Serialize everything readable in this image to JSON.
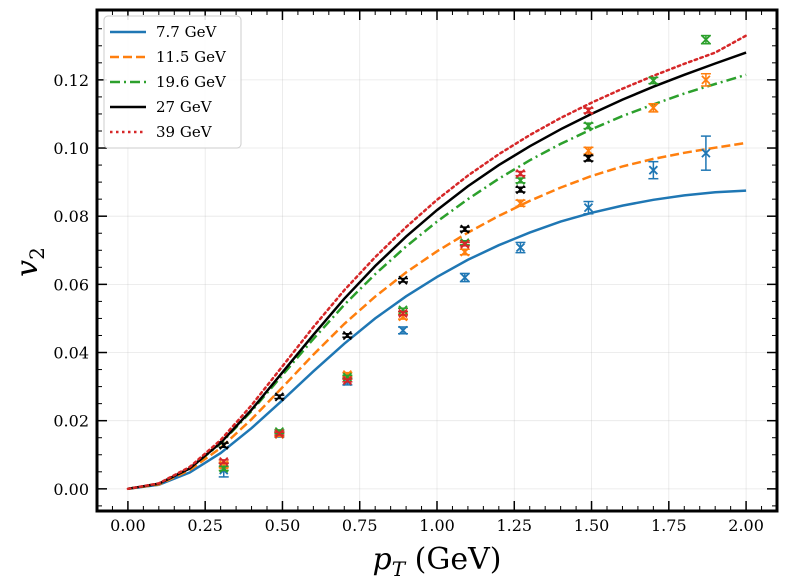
{
  "chart_data": {
    "type": "line",
    "title": "",
    "xlabel": "p",
    "xlabel_sub": "T",
    "xlabel_unit": " (GeV)",
    "ylabel": "v",
    "ylabel_sub": "2",
    "xlim": [
      -0.1,
      2.1
    ],
    "ylim": [
      -0.0065,
      0.1405
    ],
    "xticks": [
      0.0,
      0.25,
      0.5,
      0.75,
      1.0,
      1.25,
      1.5,
      1.75,
      2.0
    ],
    "xtick_labels": [
      "0.00",
      "0.25",
      "0.50",
      "0.75",
      "1.00",
      "1.25",
      "1.50",
      "1.75",
      "2.00"
    ],
    "yticks": [
      0.0,
      0.02,
      0.04,
      0.06,
      0.08,
      0.1,
      0.12
    ],
    "ytick_labels": [
      "0.00",
      "0.02",
      "0.04",
      "0.06",
      "0.08",
      "0.10",
      "0.12"
    ],
    "grid": true,
    "legend_position": "top-left",
    "curves": [
      {
        "name": "7.7 GeV",
        "color": "#1f77b4",
        "dash": "solid",
        "x": [
          0,
          0.1,
          0.2,
          0.3,
          0.4,
          0.5,
          0.6,
          0.7,
          0.8,
          0.9,
          1.0,
          1.1,
          1.2,
          1.3,
          1.4,
          1.5,
          1.6,
          1.7,
          1.8,
          1.9,
          2.0
        ],
        "y": [
          0,
          0.0012,
          0.0048,
          0.0105,
          0.0178,
          0.026,
          0.0345,
          0.0426,
          0.05,
          0.0565,
          0.0622,
          0.0672,
          0.0715,
          0.0752,
          0.0784,
          0.081,
          0.0831,
          0.0848,
          0.0861,
          0.087,
          0.0875
        ]
      },
      {
        "name": "11.5 GeV",
        "color": "#ff7f0e",
        "dash": "dashed",
        "x": [
          0,
          0.1,
          0.2,
          0.3,
          0.4,
          0.5,
          0.6,
          0.7,
          0.8,
          0.9,
          1.0,
          1.1,
          1.2,
          1.3,
          1.4,
          1.5,
          1.6,
          1.7,
          1.8,
          1.9,
          2.0
        ],
        "y": [
          0,
          0.0013,
          0.0055,
          0.012,
          0.0204,
          0.0298,
          0.0394,
          0.0484,
          0.0564,
          0.0635,
          0.0697,
          0.0752,
          0.0801,
          0.0845,
          0.0884,
          0.0918,
          0.0946,
          0.0968,
          0.0986,
          0.1001,
          0.1015
        ]
      },
      {
        "name": "19.6 GeV",
        "color": "#2ca02c",
        "dash": "dashdot",
        "x": [
          0,
          0.1,
          0.2,
          0.3,
          0.4,
          0.5,
          0.6,
          0.7,
          0.8,
          0.9,
          1.0,
          1.1,
          1.2,
          1.3,
          1.4,
          1.5,
          1.6,
          1.7,
          1.8,
          1.9,
          2.0
        ],
        "y": [
          0,
          0.0015,
          0.006,
          0.0133,
          0.0228,
          0.0334,
          0.044,
          0.054,
          0.063,
          0.0711,
          0.0784,
          0.085,
          0.091,
          0.0964,
          0.1012,
          0.1055,
          0.1094,
          0.1128,
          0.116,
          0.1188,
          0.1215
        ]
      },
      {
        "name": "27 GeV",
        "color": "#000000",
        "dash": "solid",
        "x": [
          0,
          0.1,
          0.2,
          0.3,
          0.4,
          0.5,
          0.6,
          0.7,
          0.8,
          0.9,
          1.0,
          1.1,
          1.2,
          1.3,
          1.4,
          1.5,
          1.6,
          1.7,
          1.8,
          1.9,
          2.0
        ],
        "y": [
          0,
          0.0015,
          0.006,
          0.0135,
          0.0232,
          0.0342,
          0.0452,
          0.0558,
          0.0654,
          0.074,
          0.0818,
          0.0888,
          0.095,
          0.1005,
          0.1055,
          0.11,
          0.1142,
          0.118,
          0.1215,
          0.1248,
          0.128
        ]
      },
      {
        "name": "39 GeV",
        "color": "#d62728",
        "dash": "dotted",
        "x": [
          0,
          0.1,
          0.2,
          0.3,
          0.4,
          0.5,
          0.6,
          0.7,
          0.8,
          0.9,
          1.0,
          1.1,
          1.2,
          1.3,
          1.4,
          1.5,
          1.6,
          1.7,
          1.8,
          1.9,
          2.0
        ],
        "y": [
          0,
          0.0016,
          0.0064,
          0.0143,
          0.0245,
          0.036,
          0.0475,
          0.0583,
          0.068,
          0.0768,
          0.0848,
          0.0919,
          0.0982,
          0.1038,
          0.1088,
          0.1133,
          0.1174,
          0.1212,
          0.1247,
          0.128,
          0.133
        ]
      }
    ],
    "data_points": [
      {
        "name": "7.7 GeV",
        "color": "#1f77b4",
        "x": [
          0.31,
          0.49,
          0.71,
          0.89,
          1.09,
          1.27,
          1.49,
          1.7,
          1.87
        ],
        "y": [
          0.0055,
          0.016,
          0.0315,
          0.0465,
          0.062,
          0.0708,
          0.0825,
          0.0935,
          0.0985
        ],
        "err": [
          0.002,
          0.0008,
          0.001,
          0.001,
          0.0012,
          0.0015,
          0.0018,
          0.0025,
          0.005
        ]
      },
      {
        "name": "11.5 GeV",
        "color": "#ff7f0e",
        "x": [
          0.31,
          0.49,
          0.71,
          0.89,
          1.09,
          1.27,
          1.49,
          1.7,
          1.87
        ],
        "y": [
          0.007,
          0.016,
          0.0335,
          0.0505,
          0.0695,
          0.0838,
          0.0992,
          0.1118,
          0.12
        ],
        "err": [
          0.0008,
          0.0006,
          0.0006,
          0.0007,
          0.0008,
          0.0009,
          0.001,
          0.0012,
          0.0018
        ]
      },
      {
        "name": "19.6 GeV",
        "color": "#2ca02c",
        "x": [
          0.31,
          0.49,
          0.71,
          0.89,
          1.09,
          1.27,
          1.49,
          1.7,
          1.87
        ],
        "y": [
          0.006,
          0.0168,
          0.0328,
          0.0525,
          0.0722,
          0.0905,
          0.1065,
          0.1198,
          0.1318
        ],
        "err": [
          0.0006,
          0.0005,
          0.0005,
          0.0005,
          0.0006,
          0.0007,
          0.0008,
          0.0009,
          0.0012
        ]
      },
      {
        "name": "27 GeV",
        "color": "#000000",
        "x": [
          0.31,
          0.49,
          0.71,
          0.89,
          1.09,
          1.27,
          1.49
        ],
        "y": [
          0.0128,
          0.027,
          0.045,
          0.0612,
          0.0762,
          0.0878,
          0.097
        ],
        "err": [
          0.0006,
          0.0005,
          0.0005,
          0.0005,
          0.0006,
          0.0007,
          0.0008
        ]
      },
      {
        "name": "39 GeV",
        "color": "#d62728",
        "x": [
          0.31,
          0.49,
          0.71,
          0.89,
          1.09,
          1.27,
          1.49
        ],
        "y": [
          0.008,
          0.0162,
          0.0318,
          0.0515,
          0.0718,
          0.0925,
          0.111
        ],
        "err": [
          0.0005,
          0.0004,
          0.0004,
          0.0005,
          0.0005,
          0.0006,
          0.0007
        ]
      }
    ]
  }
}
